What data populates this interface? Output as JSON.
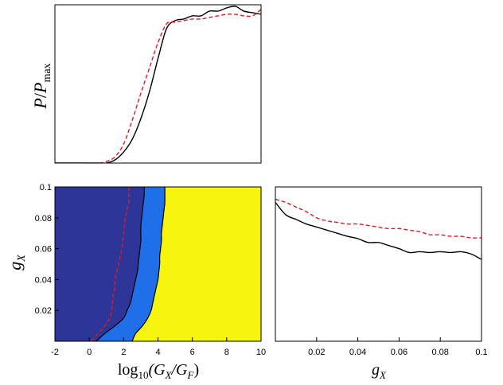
{
  "chart_data": [
    {
      "type": "line",
      "panel": "top-left",
      "title": "",
      "xlim": [
        -2,
        10
      ],
      "ylim": [
        0,
        1
      ],
      "ylabel_parts": [
        "P",
        "/",
        "P",
        "max"
      ],
      "show_x_ticks": false,
      "show_y_ticks": false,
      "series": [
        {
          "style": "solid",
          "color": "#000000",
          "x": [
            -2,
            -0.5,
            0.5,
            1.0,
            1.5,
            2.0,
            2.5,
            3.0,
            3.5,
            4.0,
            4.5,
            5.0,
            5.5,
            6.0,
            6.5,
            7.0,
            7.5,
            8.0,
            8.5,
            9.0,
            9.5,
            10.0
          ],
          "y": [
            0.0,
            0.0,
            0.0,
            0.0,
            0.02,
            0.07,
            0.15,
            0.28,
            0.45,
            0.66,
            0.85,
            0.9,
            0.91,
            0.93,
            0.93,
            0.96,
            0.96,
            0.98,
            0.99,
            0.96,
            0.95,
            0.94
          ]
        },
        {
          "style": "dashed",
          "color": "#e31a1c",
          "x": [
            -2,
            -0.5,
            0.5,
            1.0,
            1.5,
            2.0,
            2.5,
            3.0,
            3.5,
            4.0,
            4.5,
            5.0,
            5.5,
            6.0,
            6.5,
            7.0,
            7.5,
            8.0,
            8.5,
            9.0,
            9.5,
            10.0
          ],
          "y": [
            0.0,
            0.0,
            0.0,
            0.01,
            0.04,
            0.12,
            0.27,
            0.44,
            0.6,
            0.76,
            0.88,
            0.89,
            0.9,
            0.91,
            0.91,
            0.92,
            0.93,
            0.94,
            0.94,
            0.93,
            0.93,
            0.97
          ]
        }
      ]
    },
    {
      "type": "area",
      "panel": "bottom-left",
      "title": "",
      "xlabel_parts": [
        "log",
        "10",
        "(G",
        "X",
        "/G",
        "F",
        ")"
      ],
      "ylabel_parts": [
        "g",
        "X"
      ],
      "xlim": [
        -2,
        10
      ],
      "ylim": [
        0,
        0.1
      ],
      "x_ticks": [
        -2,
        0,
        2,
        4,
        6,
        8,
        10
      ],
      "x_tick_labels": [
        "-2",
        "0",
        "2",
        "4",
        "6",
        "8",
        "10"
      ],
      "y_ticks": [
        0.02,
        0.04,
        0.06,
        0.08,
        0.1
      ],
      "y_tick_labels": [
        "0.02",
        "0.04",
        "0.06",
        "0.08",
        "0.1"
      ],
      "background_color": "#f5f50e",
      "regions": [
        {
          "color": "#1e6fe8",
          "y": [
            0.0,
            0.005,
            0.01,
            0.015,
            0.02,
            0.025,
            0.03,
            0.035,
            0.04,
            0.045,
            0.05,
            0.055,
            0.06,
            0.065,
            0.07,
            0.075,
            0.08,
            0.085,
            0.09,
            0.095,
            0.1
          ],
          "x_boundary": [
            2.5,
            2.7,
            3.1,
            3.4,
            3.6,
            3.7,
            3.8,
            3.9,
            4.0,
            4.05,
            4.1,
            4.1,
            4.15,
            4.2,
            4.2,
            4.25,
            4.3,
            4.35,
            4.4,
            4.4,
            4.4
          ]
        },
        {
          "color": "#2e3598",
          "y": [
            0.0,
            0.005,
            0.01,
            0.015,
            0.02,
            0.025,
            0.03,
            0.035,
            0.04,
            0.045,
            0.05,
            0.055,
            0.06,
            0.065,
            0.07,
            0.075,
            0.08,
            0.085,
            0.09,
            0.095,
            0.1
          ],
          "x_boundary": [
            0.4,
            0.9,
            1.5,
            2.0,
            2.2,
            2.4,
            2.5,
            2.6,
            2.7,
            2.8,
            2.85,
            2.9,
            2.95,
            3.0,
            3.0,
            3.0,
            3.05,
            3.1,
            3.15,
            3.2,
            3.2
          ]
        }
      ],
      "dashed_boundary": {
        "color": "#e31a1c",
        "y": [
          0.0,
          0.005,
          0.01,
          0.015,
          0.02,
          0.025,
          0.03,
          0.035,
          0.04,
          0.045,
          0.05,
          0.055,
          0.06,
          0.065,
          0.07,
          0.075,
          0.08,
          0.085,
          0.09,
          0.095,
          0.1
        ],
        "x": [
          0.1,
          0.5,
          0.9,
          1.2,
          1.3,
          1.35,
          1.4,
          1.5,
          1.5,
          1.6,
          1.7,
          1.8,
          1.9,
          1.95,
          2.0,
          2.05,
          2.1,
          2.2,
          2.3,
          2.3,
          2.3
        ]
      }
    },
    {
      "type": "line",
      "panel": "bottom-right",
      "title": "",
      "xlabel_parts": [
        "g",
        "X"
      ],
      "xlim": [
        0,
        0.1
      ],
      "ylim": [
        0,
        1
      ],
      "x_ticks": [
        0.02,
        0.04,
        0.06,
        0.08,
        0.1
      ],
      "x_tick_labels": [
        "0.02",
        "0.04",
        "0.06",
        "0.08",
        "0.1"
      ],
      "show_y_ticks": false,
      "series": [
        {
          "style": "solid",
          "color": "#000000",
          "x": [
            0.0,
            0.005,
            0.01,
            0.015,
            0.02,
            0.025,
            0.03,
            0.035,
            0.04,
            0.045,
            0.05,
            0.055,
            0.06,
            0.065,
            0.07,
            0.075,
            0.08,
            0.085,
            0.09,
            0.095,
            0.1
          ],
          "y": [
            0.9,
            0.82,
            0.79,
            0.76,
            0.74,
            0.72,
            0.7,
            0.68,
            0.665,
            0.64,
            0.64,
            0.62,
            0.6,
            0.575,
            0.58,
            0.575,
            0.58,
            0.575,
            0.58,
            0.565,
            0.53
          ]
        },
        {
          "style": "dashed",
          "color": "#e31a1c",
          "x": [
            0.0,
            0.005,
            0.01,
            0.015,
            0.02,
            0.025,
            0.03,
            0.035,
            0.04,
            0.045,
            0.05,
            0.055,
            0.06,
            0.065,
            0.07,
            0.075,
            0.08,
            0.085,
            0.09,
            0.095,
            0.1
          ],
          "y": [
            0.92,
            0.9,
            0.87,
            0.84,
            0.8,
            0.78,
            0.77,
            0.76,
            0.76,
            0.75,
            0.74,
            0.73,
            0.73,
            0.72,
            0.71,
            0.69,
            0.69,
            0.68,
            0.68,
            0.67,
            0.67
          ]
        }
      ]
    }
  ]
}
